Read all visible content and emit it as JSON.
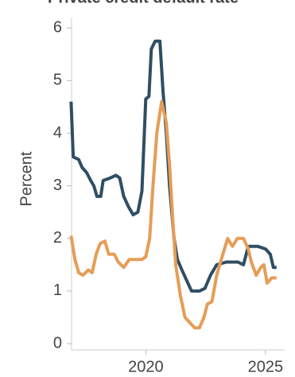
{
  "chart_data": {
    "type": "line",
    "title": "Private credit default rate",
    "ylabel": "Percent",
    "xlim": [
      2016.9,
      2025.8
    ],
    "xticks": [
      2020,
      2025
    ],
    "ylim": [
      -0.12,
      6.2
    ],
    "yticks": [
      0,
      1,
      2,
      3,
      4,
      5,
      6
    ],
    "grid": false,
    "series": [
      {
        "color": "#2f4e63",
        "x": [
          2016.88,
          2016.97,
          2017.2,
          2017.34,
          2017.53,
          2017.7,
          2017.83,
          2017.96,
          2018.12,
          2018.22,
          2018.52,
          2018.75,
          2018.91,
          2019.08,
          2019.28,
          2019.47,
          2019.67,
          2019.84,
          2020.0,
          2020.13,
          2020.23,
          2020.39,
          2020.59,
          2020.72,
          2020.86,
          2020.99,
          2021.18,
          2021.32,
          2021.51,
          2021.71,
          2021.91,
          2022.24,
          2022.47,
          2022.7,
          2022.96,
          2023.36,
          2023.85,
          2024.08,
          2024.28,
          2024.67,
          2025.0,
          2025.2,
          2025.33,
          2025.46
        ],
        "values": [
          4.6,
          3.55,
          3.5,
          3.35,
          3.25,
          3.1,
          3.0,
          2.8,
          2.8,
          3.1,
          3.15,
          3.2,
          3.15,
          2.8,
          2.6,
          2.45,
          2.5,
          2.9,
          4.65,
          4.7,
          5.6,
          5.75,
          5.75,
          4.8,
          4.0,
          3.0,
          2.0,
          1.6,
          1.4,
          1.2,
          1.0,
          1.0,
          1.05,
          1.3,
          1.5,
          1.55,
          1.55,
          1.5,
          1.85,
          1.85,
          1.8,
          1.7,
          1.45,
          1.45
        ]
      },
      {
        "color": "#e59d56",
        "x": [
          2016.88,
          2017.04,
          2017.2,
          2017.37,
          2017.6,
          2017.76,
          2017.93,
          2018.09,
          2018.29,
          2018.45,
          2018.68,
          2018.85,
          2019.08,
          2019.31,
          2019.57,
          2019.84,
          2020.0,
          2020.16,
          2020.3,
          2020.46,
          2020.66,
          2020.86,
          2020.99,
          2021.12,
          2021.25,
          2021.45,
          2021.64,
          2021.84,
          2022.04,
          2022.24,
          2022.43,
          2022.57,
          2022.76,
          2022.96,
          2023.22,
          2023.42,
          2023.62,
          2023.82,
          2024.08,
          2024.28,
          2024.41,
          2024.61,
          2024.8,
          2024.93,
          2025.07,
          2025.26,
          2025.46
        ],
        "values": [
          2.05,
          1.6,
          1.35,
          1.3,
          1.4,
          1.35,
          1.7,
          1.9,
          1.95,
          1.7,
          1.7,
          1.55,
          1.45,
          1.6,
          1.6,
          1.6,
          1.65,
          2.0,
          3.0,
          4.0,
          4.6,
          4.2,
          3.4,
          2.4,
          1.5,
          0.9,
          0.5,
          0.4,
          0.3,
          0.3,
          0.5,
          0.75,
          0.8,
          1.3,
          1.7,
          2.0,
          1.85,
          2.0,
          2.0,
          1.8,
          1.55,
          1.3,
          1.45,
          1.5,
          1.15,
          1.25,
          1.25
        ]
      }
    ]
  }
}
